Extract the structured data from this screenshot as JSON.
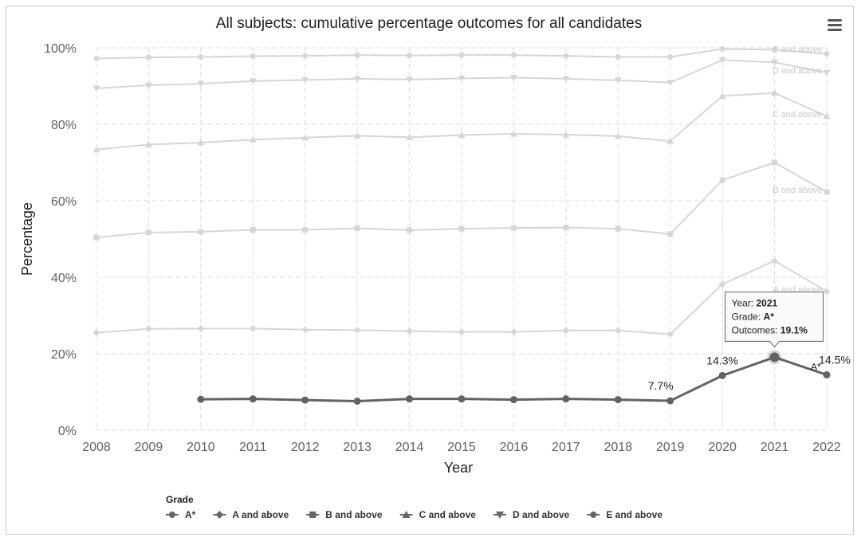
{
  "chart_data": {
    "type": "line",
    "title": "All subjects: cumulative percentage outcomes for all candidates",
    "xlabel": "Year",
    "ylabel": "Percentage",
    "categories": [
      "2008",
      "2009",
      "2010",
      "2011",
      "2012",
      "2013",
      "2014",
      "2015",
      "2016",
      "2017",
      "2018",
      "2019",
      "2020",
      "2021",
      "2022"
    ],
    "ylim": [
      0,
      100
    ],
    "yticks": [
      "0%",
      "20%",
      "40%",
      "60%",
      "80%",
      "100%"
    ],
    "grid": true,
    "legend_placement": "bottom-left",
    "legend_title": "Grade",
    "series": [
      {
        "name": "A*",
        "marker": "circle",
        "highlighted": true,
        "end_label": "A*",
        "values": [
          null,
          null,
          8.1,
          8.2,
          7.9,
          7.6,
          8.2,
          8.2,
          8.0,
          8.2,
          8.0,
          7.7,
          14.3,
          19.1,
          14.5
        ]
      },
      {
        "name": "A and above",
        "marker": "diamond",
        "end_label": "A and above",
        "values": [
          25.5,
          26.5,
          26.6,
          26.6,
          26.3,
          26.2,
          25.9,
          25.7,
          25.7,
          26.1,
          26.1,
          25.1,
          38.2,
          44.3,
          36.3
        ]
      },
      {
        "name": "B and above",
        "marker": "square",
        "end_label": "B and above",
        "values": [
          50.4,
          51.7,
          51.9,
          52.4,
          52.4,
          52.8,
          52.3,
          52.7,
          52.9,
          53.0,
          52.7,
          51.3,
          65.4,
          70.0,
          62.3
        ]
      },
      {
        "name": "C and above",
        "marker": "triangle-up",
        "end_label": "C and above",
        "values": [
          73.4,
          74.7,
          75.2,
          76.0,
          76.5,
          77.0,
          76.6,
          77.2,
          77.5,
          77.3,
          76.9,
          75.6,
          87.4,
          88.2,
          82.1
        ]
      },
      {
        "name": "D and above",
        "marker": "triangle-down",
        "end_label": "D and above",
        "values": [
          89.4,
          90.2,
          90.6,
          91.3,
          91.6,
          91.9,
          91.7,
          92.0,
          92.2,
          91.9,
          91.5,
          90.9,
          96.8,
          96.2,
          93.5
        ]
      },
      {
        "name": "E and above",
        "marker": "circle",
        "end_label": "E and above",
        "values": [
          97.2,
          97.5,
          97.6,
          97.8,
          97.9,
          98.1,
          98.0,
          98.1,
          98.1,
          97.9,
          97.6,
          97.6,
          99.7,
          99.5,
          98.4
        ]
      }
    ],
    "data_labels": [
      {
        "series": "A*",
        "category": "2019",
        "text": "7.7%"
      },
      {
        "series": "A*",
        "category": "2020",
        "text": "14.3%"
      },
      {
        "series": "A*",
        "category": "2022",
        "text": "14.5%"
      }
    ],
    "tooltip": {
      "year_label": "Year: ",
      "year": "2021",
      "grade_label": "Grade: ",
      "grade": "A*",
      "outcomes_label": "Outcomes: ",
      "outcomes": "19.1%"
    },
    "colors": {
      "highlight": "#636363",
      "faded": "#d6d6d6",
      "grid": "#dcdcdc",
      "legend_marker": "#666666"
    }
  }
}
